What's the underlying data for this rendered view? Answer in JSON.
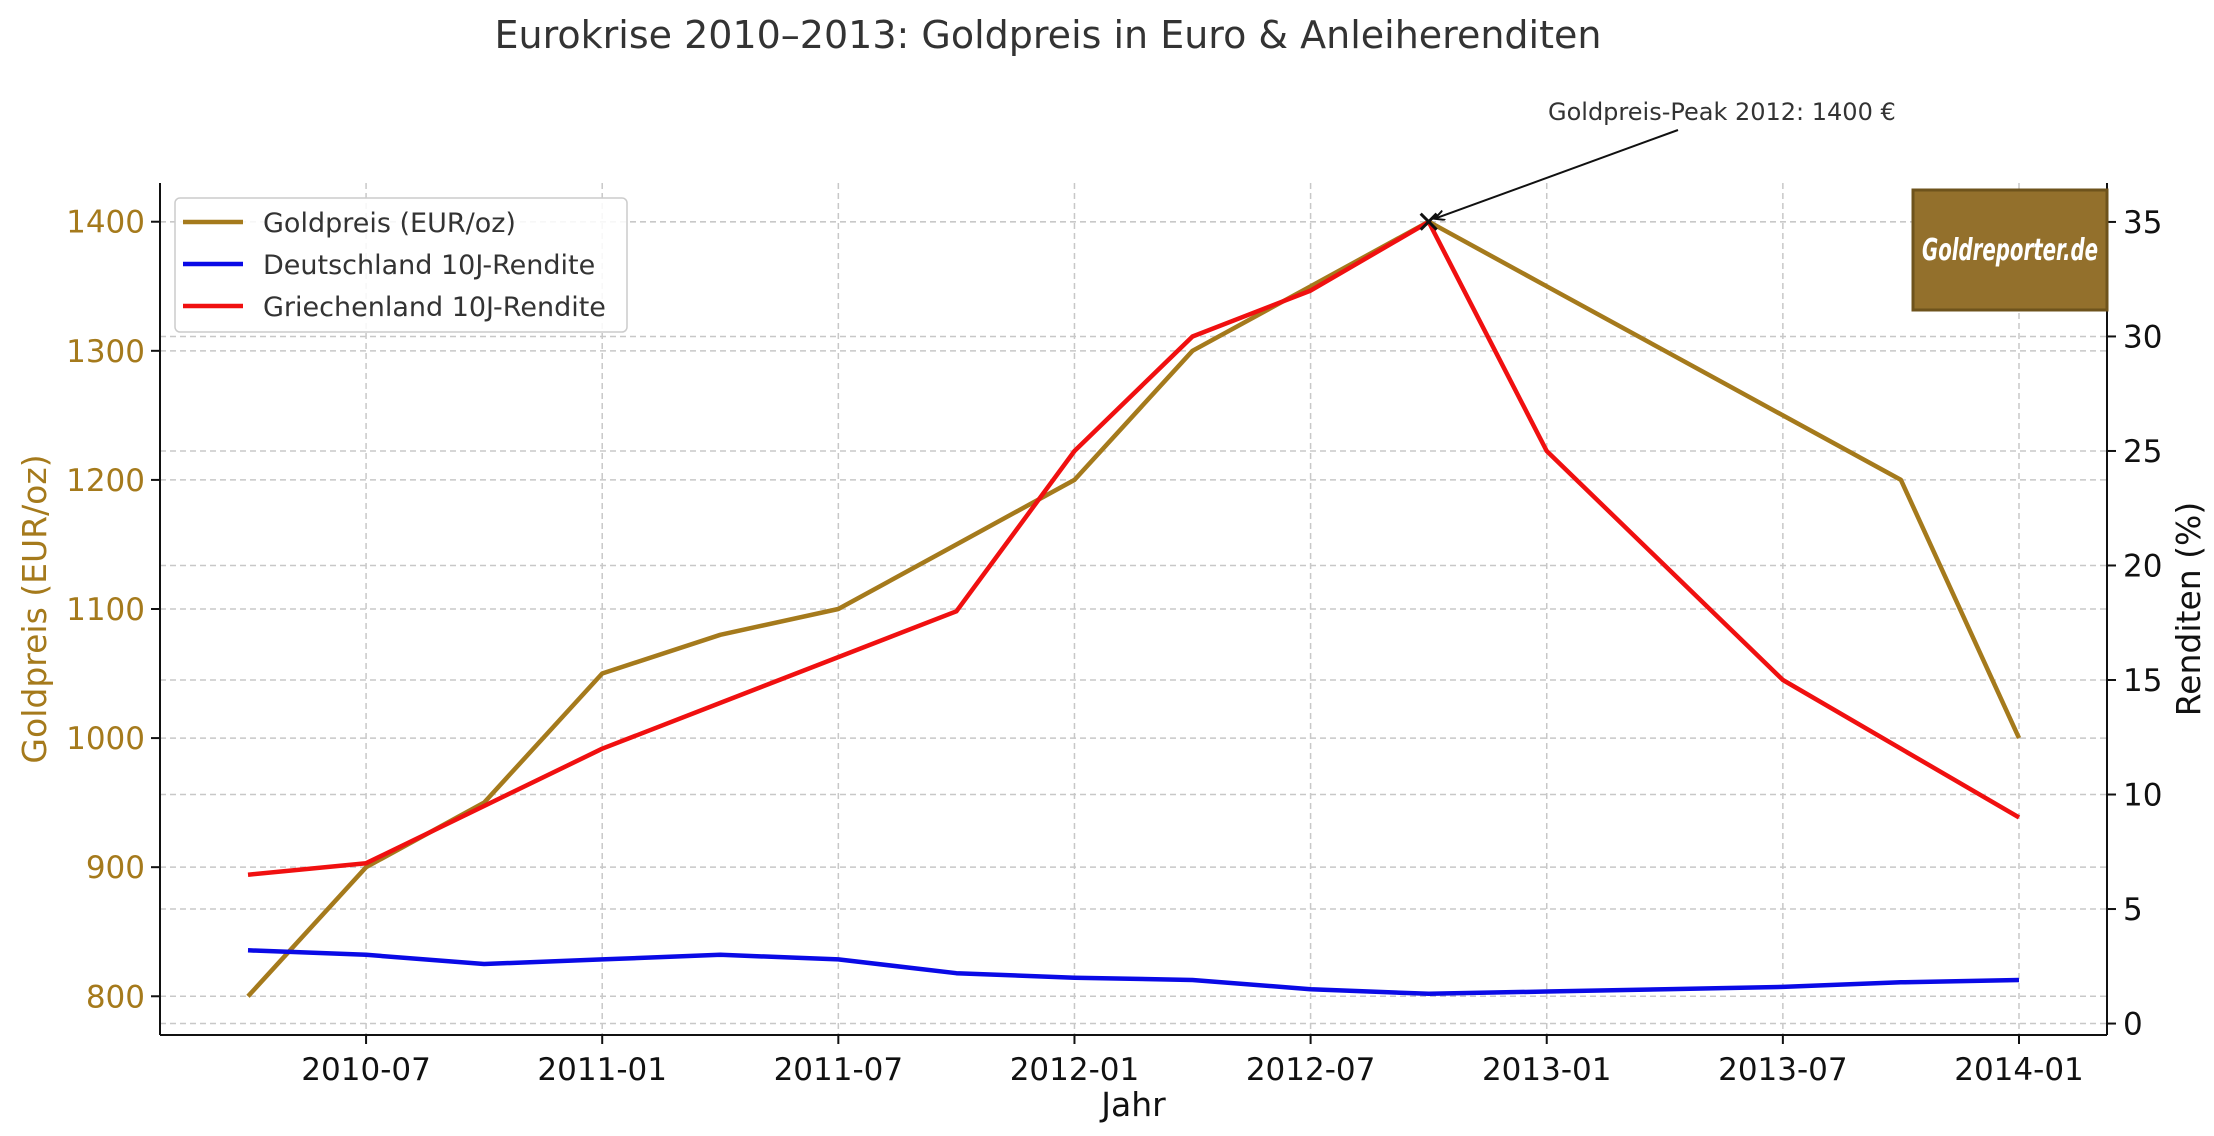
{
  "chart_data": {
    "type": "line",
    "title": "Eurokrise 2010–2013: Goldpreis in Euro & Anleiherenditen",
    "xlabel": "Jahr",
    "ylabel_left": "Goldpreis (EUR/oz)",
    "ylabel_right": "Renditen (%)",
    "x": [
      "2010-04",
      "2010-07",
      "2010-10",
      "2011-01",
      "2011-04",
      "2011-07",
      "2011-10",
      "2012-01",
      "2012-04",
      "2012-07",
      "2012-10",
      "2013-01",
      "2013-04",
      "2013-07",
      "2013-10",
      "2014-01"
    ],
    "x_ticks": [
      "2010-07",
      "2011-01",
      "2011-07",
      "2012-01",
      "2012-07",
      "2013-01",
      "2013-07",
      "2014-01"
    ],
    "y_left": {
      "range": [
        770,
        1430
      ],
      "ticks": [
        800,
        900,
        1000,
        1100,
        1200,
        1300,
        1400
      ]
    },
    "y_right": {
      "range": [
        -0.5,
        36.7
      ],
      "ticks": [
        0,
        5,
        10,
        15,
        20,
        25,
        30,
        35
      ]
    },
    "grid": true,
    "legend_position": "top-left",
    "series": [
      {
        "name": "Goldpreis (EUR/oz)",
        "axis": "left",
        "color": "#a57a1c",
        "values": [
          800,
          900,
          950,
          1050,
          1080,
          1100,
          1150,
          1200,
          1300,
          1350,
          1400,
          1350,
          1300,
          1250,
          1200,
          1000
        ]
      },
      {
        "name": "Deutschland 10J-Rendite",
        "axis": "right",
        "color": "#0a0ae6",
        "values": [
          3.2,
          3.0,
          2.6,
          2.8,
          3.0,
          2.8,
          2.2,
          2.0,
          1.9,
          1.5,
          1.3,
          1.4,
          1.5,
          1.6,
          1.8,
          1.9
        ]
      },
      {
        "name": "Griechenland 10J-Rendite",
        "axis": "right",
        "color": "#f01010",
        "values": [
          6.5,
          7.0,
          9.5,
          12.0,
          14.0,
          16.0,
          18.0,
          25.0,
          30.0,
          32.0,
          35.0,
          25.0,
          20.0,
          15.0,
          12.0,
          9.0
        ]
      }
    ],
    "annotation": {
      "text": "Goldpreis-Peak 2012: 1400 €",
      "x": "2012-10",
      "y": 1400
    },
    "logo": {
      "text": "Goldreporter.de",
      "color": "#93702c"
    }
  }
}
